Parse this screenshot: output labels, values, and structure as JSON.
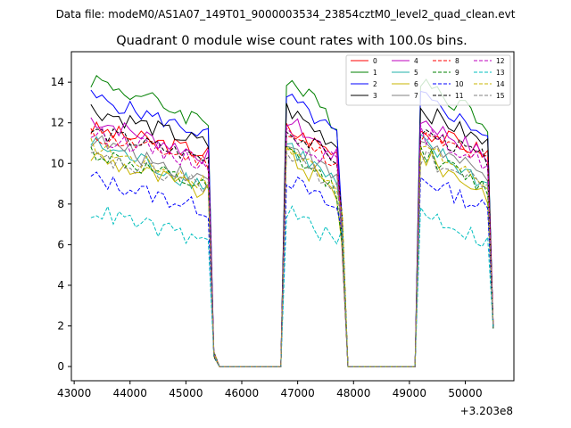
{
  "chart_data": {
    "type": "line",
    "suptitle": "Data file: modeM0/AS1A07_149T01_9000003534_23854cztM0_level2_quad_clean.evt",
    "title": "Quadrant 0 module wise count rates with 100.0s bins.",
    "xlabel": "",
    "ylabel": "",
    "x_offset_label": "+3.203e8",
    "xlim": [
      42950,
      50870
    ],
    "ylim": [
      -0.7,
      15.5
    ],
    "xticks": [
      43000,
      44000,
      45000,
      46000,
      47000,
      48000,
      49000,
      50000
    ],
    "xtick_labels": [
      "43000",
      "44000",
      "45000",
      "46000",
      "47000",
      "48000",
      "49000",
      "50000"
    ],
    "yticks": [
      0,
      2,
      4,
      6,
      8,
      10,
      12,
      14
    ],
    "ytick_labels": [
      "0",
      "2",
      "4",
      "6",
      "8",
      "10",
      "12",
      "14"
    ],
    "x": [
      43300,
      43400,
      43500,
      43600,
      43700,
      43800,
      43900,
      44000,
      44100,
      44200,
      44300,
      44400,
      44500,
      44600,
      44700,
      44800,
      44900,
      45000,
      45100,
      45200,
      45300,
      45400,
      45500,
      45600,
      45700,
      45800,
      45900,
      46000,
      46100,
      46200,
      46300,
      46400,
      46500,
      46600,
      46700,
      46800,
      46900,
      47000,
      47100,
      47200,
      47300,
      47400,
      47500,
      47600,
      47700,
      47800,
      47900,
      48000,
      48100,
      48200,
      48300,
      48400,
      48500,
      48600,
      48700,
      48800,
      48900,
      49000,
      49100,
      49200,
      49300,
      49400,
      49500,
      49600,
      49700,
      49800,
      49900,
      50000,
      50100,
      50200,
      50300,
      50400,
      50500
    ],
    "legend_position": "upper-right",
    "series": [
      {
        "name": "0",
        "color": "#ff0000",
        "dash": false,
        "base": 11.7,
        "slope": -1.2,
        "noise": 0.45
      },
      {
        "name": "1",
        "color": "#008000",
        "dash": false,
        "base": 14.2,
        "slope": -2.2,
        "noise": 0.5
      },
      {
        "name": "2",
        "color": "#0000ff",
        "dash": false,
        "base": 13.3,
        "slope": -1.9,
        "noise": 0.4
      },
      {
        "name": "3",
        "color": "#000000",
        "dash": false,
        "base": 12.7,
        "slope": -1.8,
        "noise": 0.45
      },
      {
        "name": "4",
        "color": "#bf00bf",
        "dash": false,
        "base": 12.2,
        "slope": -1.9,
        "noise": 0.45
      },
      {
        "name": "5",
        "color": "#20b2aa",
        "dash": false,
        "base": 11.0,
        "slope": -2.1,
        "noise": 0.5
      },
      {
        "name": "6",
        "color": "#c8b400",
        "dash": false,
        "base": 10.4,
        "slope": -1.9,
        "noise": 0.5
      },
      {
        "name": "7",
        "color": "#808080",
        "dash": false,
        "base": 11.2,
        "slope": -2.0,
        "noise": 0.45
      },
      {
        "name": "8",
        "color": "#ff0000",
        "dash": true,
        "base": 11.4,
        "slope": -1.3,
        "noise": 0.4
      },
      {
        "name": "9",
        "color": "#008000",
        "dash": true,
        "base": 10.6,
        "slope": -1.9,
        "noise": 0.45
      },
      {
        "name": "10",
        "color": "#0000ff",
        "dash": true,
        "base": 9.3,
        "slope": -1.6,
        "noise": 0.45
      },
      {
        "name": "11",
        "color": "#000000",
        "dash": true,
        "base": 11.6,
        "slope": -1.4,
        "noise": 0.4
      },
      {
        "name": "12",
        "color": "#bf00bf",
        "dash": true,
        "base": 11.5,
        "slope": -1.5,
        "noise": 0.45
      },
      {
        "name": "13",
        "color": "#00bfbf",
        "dash": true,
        "base": 7.7,
        "slope": -1.6,
        "noise": 0.45
      },
      {
        "name": "14",
        "color": "#c8b400",
        "dash": true,
        "base": 10.9,
        "slope": -1.9,
        "noise": 0.4
      },
      {
        "name": "15",
        "color": "#808080",
        "dash": true,
        "base": 10.3,
        "slope": -1.4,
        "noise": 0.45
      }
    ],
    "segments": [
      {
        "x_start": 43300,
        "x_end": 45400,
        "drop_to": 0.6
      },
      {
        "x_start": 46800,
        "x_end": 47700,
        "drop_to": 0.0
      },
      {
        "x_start": 49200,
        "x_end": 50400,
        "drop_to": 2.0
      }
    ]
  }
}
